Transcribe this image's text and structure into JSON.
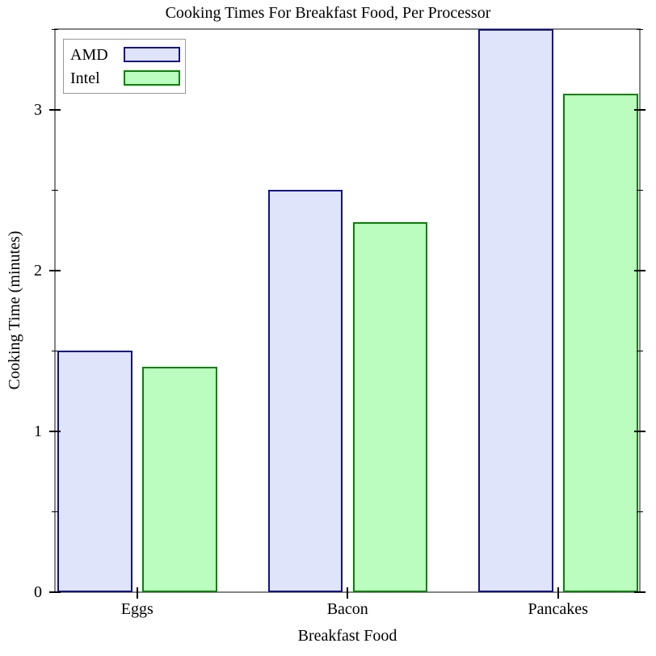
{
  "chart_data": {
    "type": "bar",
    "title": "Cooking Times For Breakfast Food, Per Processor",
    "xlabel": "Breakfast Food",
    "ylabel": "Cooking Time (minutes)",
    "categories": [
      "Eggs",
      "Bacon",
      "Pancakes"
    ],
    "series": [
      {
        "name": "AMD",
        "values": [
          1.5,
          2.5,
          3.5
        ],
        "fill": "#E0E4FA",
        "stroke": "#10108C"
      },
      {
        "name": "Intel",
        "values": [
          1.4,
          2.3,
          3.1
        ],
        "fill": "#BBFCBF",
        "stroke": "#088008"
      }
    ],
    "ylim": [
      0,
      3.5
    ],
    "yticks_major": [
      0,
      1,
      2,
      3
    ],
    "yticks_minor": [
      0.5,
      1.5,
      2.5,
      3.5
    ],
    "ytick_labels": [
      "0",
      "1",
      "2",
      "3"
    ],
    "grid": false,
    "legend_position": "top-left",
    "colors": {
      "frame": "#858585",
      "tick": "#000000",
      "legend_border": "#999999",
      "background": "#FFFFFF",
      "text": "#000000"
    }
  }
}
